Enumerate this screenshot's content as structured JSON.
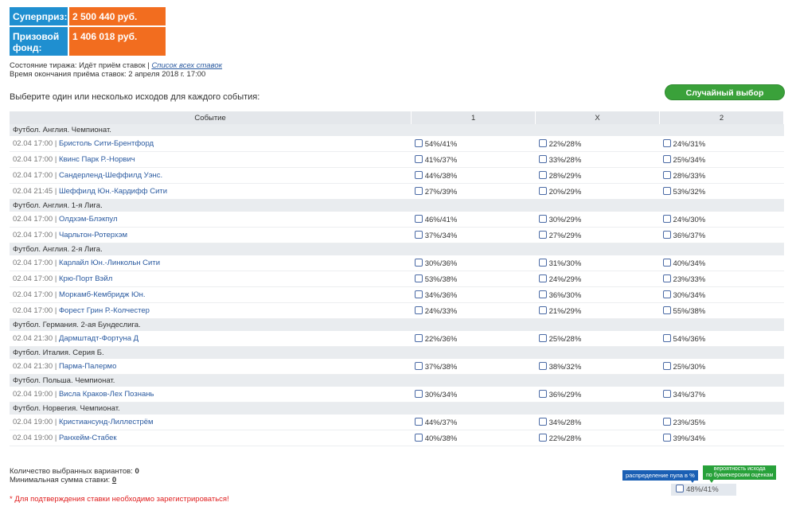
{
  "prize": {
    "superprize_label": "Суперприз:",
    "superprize_value": "2 500 440 руб.",
    "fund_label": "Призовой фонд:",
    "fund_value": "1 406 018 руб."
  },
  "status": {
    "state_text": "Состояние тиража: Идёт приём ставок |",
    "all_bets_link": "Список всех ставок",
    "deadline_text": "Время окончания приёма ставок: 2 апреля 2018 г. 17:00"
  },
  "instruction": "Выберите один или несколько исходов для каждого события:",
  "random_button": "Случайный выбор",
  "table": {
    "headers": [
      "Событие",
      "1",
      "X",
      "2"
    ],
    "groups": [
      {
        "name": "Футбол. Англия. Чемпионат.",
        "events": [
          {
            "time": "02.04 17:00 |",
            "name": "Бристоль Сити-Брентфорд",
            "o1": "54%/41%",
            "ox": "22%/28%",
            "o2": "24%/31%"
          },
          {
            "time": "02.04 17:00 |",
            "name": "Квинс Парк Р.-Норвич",
            "o1": "41%/37%",
            "ox": "33%/28%",
            "o2": "25%/34%"
          },
          {
            "time": "02.04 17:00 |",
            "name": "Сандерленд-Шеффилд Уэнс.",
            "o1": "44%/38%",
            "ox": "28%/29%",
            "o2": "28%/33%"
          },
          {
            "time": "02.04 21:45 |",
            "name": "Шеффилд Юн.-Кардифф Сити",
            "o1": "27%/39%",
            "ox": "20%/29%",
            "o2": "53%/32%"
          }
        ]
      },
      {
        "name": "Футбол. Англия. 1-я Лига.",
        "events": [
          {
            "time": "02.04 17:00 |",
            "name": "Олдхэм-Блэкпул",
            "o1": "46%/41%",
            "ox": "30%/29%",
            "o2": "24%/30%"
          },
          {
            "time": "02.04 17:00 |",
            "name": "Чарльтон-Ротерхэм",
            "o1": "37%/34%",
            "ox": "27%/29%",
            "o2": "36%/37%"
          }
        ]
      },
      {
        "name": "Футбол. Англия. 2-я Лига.",
        "events": [
          {
            "time": "02.04 17:00 |",
            "name": "Карлайл Юн.-Линкольн Сити",
            "o1": "30%/36%",
            "ox": "31%/30%",
            "o2": "40%/34%"
          },
          {
            "time": "02.04 17:00 |",
            "name": "Крю-Порт Вэйл",
            "o1": "53%/38%",
            "ox": "24%/29%",
            "o2": "23%/33%"
          },
          {
            "time": "02.04 17:00 |",
            "name": "Моркамб-Кембридж Юн.",
            "o1": "34%/36%",
            "ox": "36%/30%",
            "o2": "30%/34%"
          },
          {
            "time": "02.04 17:00 |",
            "name": "Форест Грин Р.-Колчестер",
            "o1": "24%/33%",
            "ox": "21%/29%",
            "o2": "55%/38%"
          }
        ]
      },
      {
        "name": "Футбол. Германия. 2-ая Бундеслига.",
        "events": [
          {
            "time": "02.04 21:30 |",
            "name": "Дармштадт-Фортуна Д",
            "o1": "22%/36%",
            "ox": "25%/28%",
            "o2": "54%/36%"
          }
        ]
      },
      {
        "name": "Футбол. Италия. Серия Б.",
        "events": [
          {
            "time": "02.04 21:30 |",
            "name": "Парма-Палермо",
            "o1": "37%/38%",
            "ox": "38%/32%",
            "o2": "25%/30%"
          }
        ]
      },
      {
        "name": "Футбол. Польша. Чемпионат.",
        "events": [
          {
            "time": "02.04 19:00 |",
            "name": "Висла Краков-Лех Познань",
            "o1": "30%/34%",
            "ox": "36%/29%",
            "o2": "34%/37%"
          }
        ]
      },
      {
        "name": "Футбол. Норвегия. Чемпионат.",
        "events": [
          {
            "time": "02.04 19:00 |",
            "name": "Кристиансунд-Лиллестрём",
            "o1": "44%/37%",
            "ox": "34%/28%",
            "o2": "23%/35%"
          },
          {
            "time": "02.04 19:00 |",
            "name": "Ранхейм-Стабек",
            "o1": "40%/38%",
            "ox": "22%/28%",
            "o2": "39%/34%"
          }
        ]
      }
    ]
  },
  "footer": {
    "selected_label": "Количество выбранных вариантов:",
    "selected_value": "0",
    "min_label": "Минимальная сумма ставки:",
    "min_value": "0",
    "warning": "* Для подтверждения ставки необходимо зарегистрироваться!"
  },
  "legend": {
    "pool_label": "распределение пула в %",
    "prob_label_1": "вероятность исхода",
    "prob_label_2": "по букмекерским оценкам",
    "sample": "48%/41%"
  }
}
